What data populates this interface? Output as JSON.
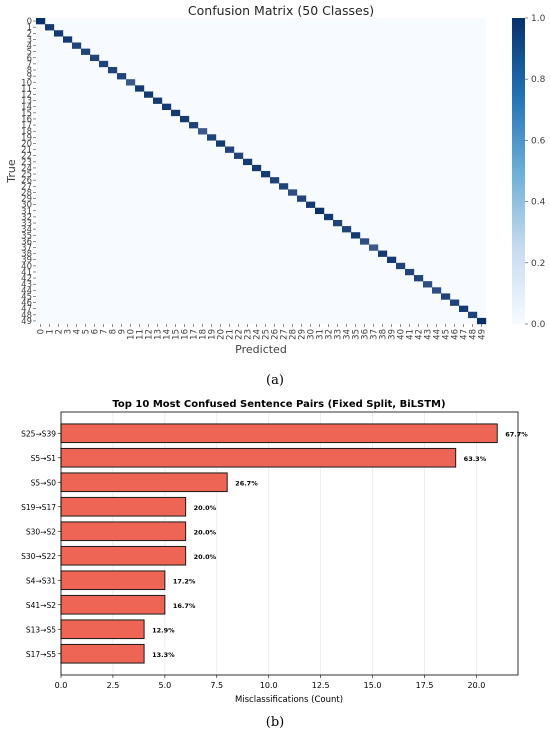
{
  "captions": {
    "a": "(a)",
    "b": "(b)"
  },
  "chart_data": [
    {
      "type": "heatmap",
      "title": "Confusion Matrix (50 Classes)",
      "xlabel": "Predicted",
      "ylabel": "True",
      "n_classes": 50,
      "labels": [
        "0",
        "1",
        "2",
        "3",
        "4",
        "5",
        "6",
        "7",
        "8",
        "9",
        "10",
        "11",
        "12",
        "13",
        "14",
        "15",
        "16",
        "17",
        "18",
        "19",
        "20",
        "21",
        "22",
        "23",
        "24",
        "25",
        "26",
        "27",
        "28",
        "29",
        "30",
        "31",
        "32",
        "33",
        "34",
        "35",
        "36",
        "37",
        "38",
        "39",
        "40",
        "41",
        "42",
        "43",
        "44",
        "45",
        "46",
        "47",
        "48",
        "49"
      ],
      "diagonal": [
        1.0,
        0.95,
        0.95,
        0.95,
        0.9,
        0.9,
        0.9,
        0.9,
        0.9,
        0.9,
        0.8,
        0.95,
        0.95,
        0.95,
        0.95,
        0.95,
        0.95,
        0.9,
        0.8,
        0.9,
        0.95,
        0.9,
        0.9,
        0.95,
        0.95,
        0.95,
        0.9,
        0.9,
        0.85,
        0.9,
        0.95,
        1.0,
        0.95,
        0.9,
        0.9,
        0.95,
        0.85,
        0.8,
        0.95,
        0.95,
        0.9,
        0.9,
        0.9,
        0.85,
        0.85,
        0.9,
        0.9,
        0.95,
        0.9,
        1.0
      ],
      "colorbar": {
        "ticks": [
          "0.0",
          "0.2",
          "0.4",
          "0.6",
          "0.8",
          "1.0"
        ],
        "range": [
          0,
          1
        ]
      },
      "colormap": [
        "#f7fbff",
        "#08306b"
      ]
    },
    {
      "type": "bar",
      "orientation": "horizontal",
      "title": "Top 10 Most Confused Sentence Pairs (Fixed Split, BiLSTM)",
      "xlabel": "Misclassifications (Count)",
      "ylabel": "",
      "xlim": [
        0,
        22
      ],
      "xticks": [
        "0.0",
        "2.5",
        "5.0",
        "7.5",
        "10.0",
        "12.5",
        "15.0",
        "17.5",
        "20.0"
      ],
      "grid": "vertical",
      "bar_color": "#ee6555",
      "categories": [
        "S25→S39",
        "S5→S1",
        "S5→S0",
        "S19→S17",
        "S30→S2",
        "S30→S22",
        "S4→S31",
        "S41→S2",
        "S13→S5",
        "S17→S5"
      ],
      "values": [
        21,
        19,
        8,
        6,
        6,
        6,
        5,
        5,
        4,
        4
      ],
      "labels": [
        "67.7%",
        "63.3%",
        "26.7%",
        "20.0%",
        "20.0%",
        "20.0%",
        "17.2%",
        "16.7%",
        "12.9%",
        "13.3%"
      ]
    }
  ]
}
